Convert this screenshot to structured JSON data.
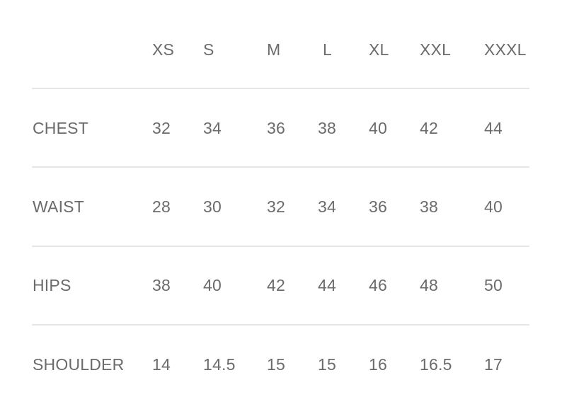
{
  "table": {
    "columns": [
      "XS",
      "S",
      "M",
      "L",
      "XL",
      "XXL",
      "XXXL"
    ],
    "rows": [
      {
        "label": "CHEST",
        "values": [
          "32",
          "34",
          "36",
          "38",
          "40",
          "42",
          "44"
        ]
      },
      {
        "label": "WAIST",
        "values": [
          "28",
          "30",
          "32",
          "34",
          "36",
          "38",
          "40"
        ]
      },
      {
        "label": "HIPS",
        "values": [
          "38",
          "40",
          "42",
          "44",
          "46",
          "48",
          "50"
        ]
      },
      {
        "label": "SHOULDER",
        "values": [
          "14",
          "14.5",
          "15",
          "15",
          "16",
          "16.5",
          "17"
        ]
      }
    ]
  },
  "colors": {
    "text": "#6b6b6b",
    "divider": "#e6e6e6",
    "background": "#ffffff"
  }
}
